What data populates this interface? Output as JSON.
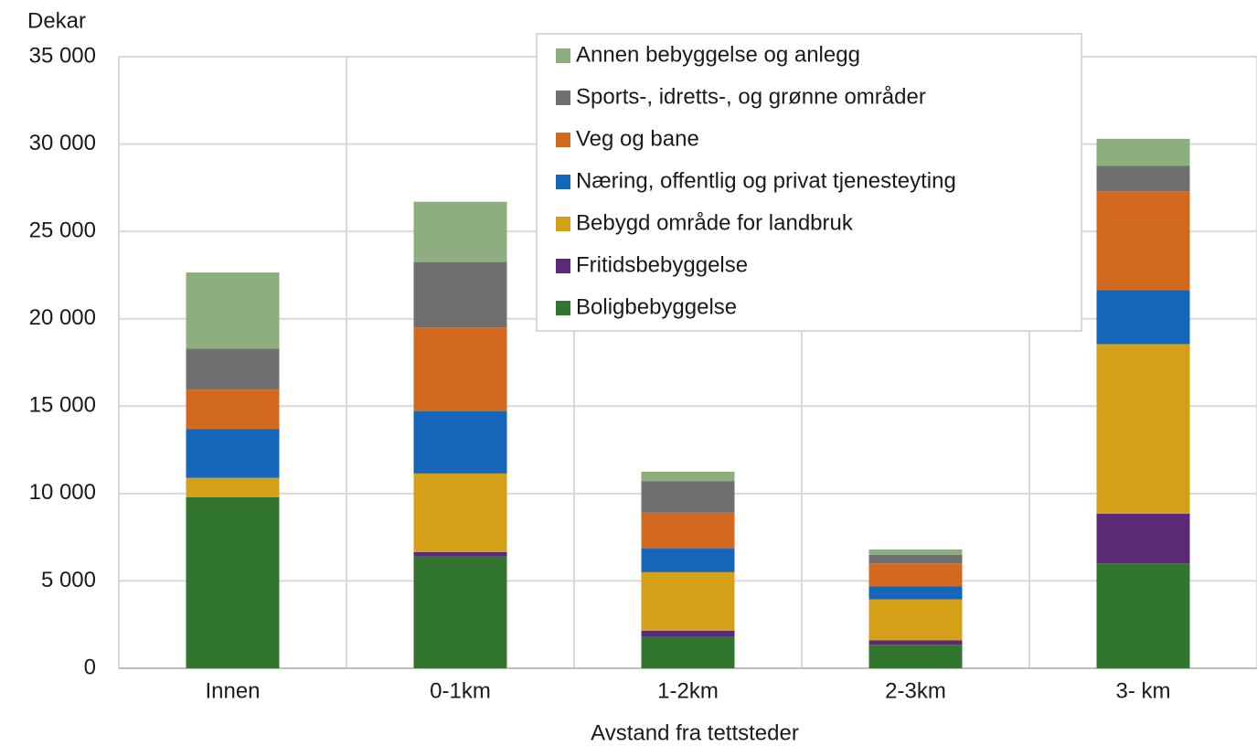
{
  "chart_data": {
    "type": "stacked_bar",
    "y_label": "Dekar",
    "x_label": "Avstand fra tettsteder",
    "categories": [
      "Innen",
      "0-1km",
      "1-2km",
      "2-3km",
      "3- km"
    ],
    "series": [
      {
        "name": "Boligbebyggelse",
        "color": "#31752f",
        "values": [
          9800,
          6400,
          1800,
          1350,
          6000
        ]
      },
      {
        "name": "Fritidsbebyggelse",
        "color": "#5a2a77",
        "values": [
          0,
          250,
          350,
          250,
          2850
        ]
      },
      {
        "name": "Bebygd område for landbruk",
        "color": "#d4a017",
        "values": [
          1100,
          4500,
          3350,
          2350,
          9700
        ]
      },
      {
        "name": "Næring, offentlig og privat tjenesteyting",
        "color": "#1565b8",
        "values": [
          2800,
          3550,
          1350,
          750,
          3100
        ]
      },
      {
        "name": "Veg og bane",
        "color": "#d2691e",
        "values": [
          2250,
          4800,
          2050,
          1300,
          5650
        ]
      },
      {
        "name": "Sports-, idretts-, og grønne områder",
        "color": "#6f6f6f",
        "values": [
          2350,
          3750,
          1800,
          500,
          1450
        ]
      },
      {
        "name": "Annen bebyggelse og anlegg",
        "color": "#8fae80",
        "values": [
          4350,
          3450,
          550,
          300,
          1550
        ]
      }
    ],
    "ylim": [
      0,
      35000
    ],
    "yticks": [
      0,
      {
        "value": 5000,
        "label": "5 000"
      },
      {
        "value": 10000,
        "label": "10 000"
      },
      {
        "value": 15000,
        "label": "15 000"
      },
      {
        "value": 20000,
        "label": "20 000"
      },
      {
        "value": 25000,
        "label": "25 000"
      },
      {
        "value": 30000,
        "label": "30 000"
      },
      {
        "value": 35000,
        "label": "35 000"
      }
    ],
    "grid": true,
    "legend": "top-center"
  }
}
